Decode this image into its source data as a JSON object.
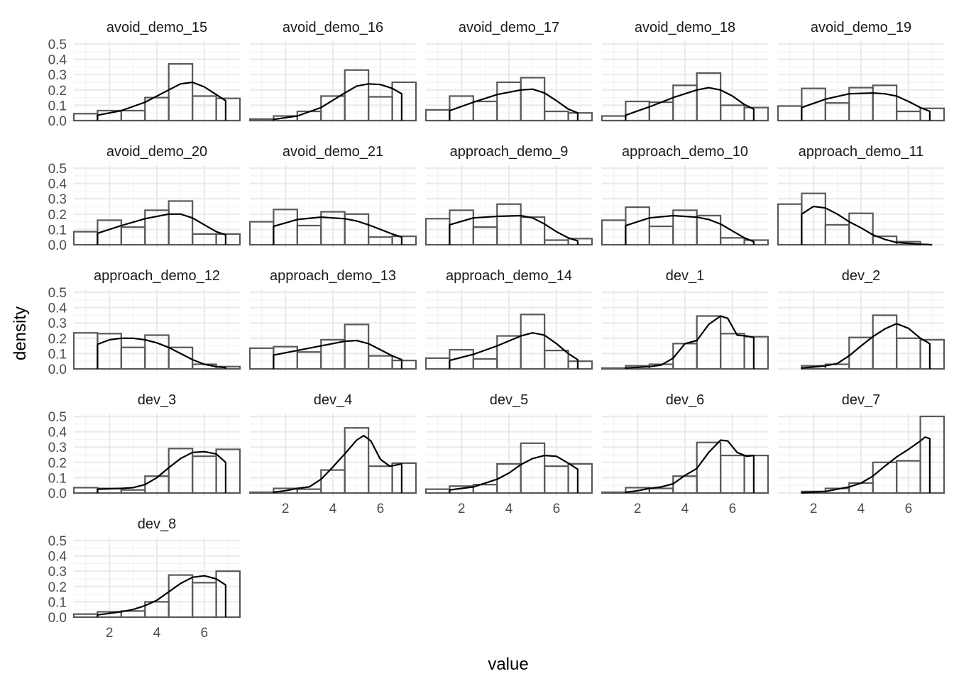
{
  "chart_data": {
    "type": "histogram-facet",
    "xlabel": "value",
    "ylabel": "density",
    "xlim": [
      0.5,
      7.5
    ],
    "ylim": [
      0,
      0.5
    ],
    "y_ticks": [
      0.0,
      0.1,
      0.2,
      0.3,
      0.4,
      0.5
    ],
    "y_tick_labels": [
      "0.0",
      "0.1",
      "0.2",
      "0.3",
      "0.4",
      "0.5"
    ],
    "x_ticks": [
      2,
      4,
      6
    ],
    "x_tick_labels": [
      "2",
      "4",
      "6"
    ],
    "bin_centers": [
      1,
      2,
      3,
      4,
      5,
      6,
      7
    ],
    "grid": true,
    "panels": [
      {
        "name": "avoid_demo_15",
        "hist": [
          0.045,
          0.065,
          0.065,
          0.15,
          0.37,
          0.16,
          0.145
        ],
        "density": [
          [
            1.5,
            0.035
          ],
          [
            2.5,
            0.065
          ],
          [
            3.5,
            0.12
          ],
          [
            4.5,
            0.2
          ],
          [
            5,
            0.24
          ],
          [
            5.5,
            0.25
          ],
          [
            6,
            0.22
          ],
          [
            6.5,
            0.17
          ],
          [
            6.9,
            0.13
          ]
        ]
      },
      {
        "name": "avoid_demo_16",
        "hist": [
          0.01,
          0.03,
          0.06,
          0.16,
          0.33,
          0.155,
          0.25
        ],
        "density": [
          [
            1.5,
            0.008
          ],
          [
            2.5,
            0.03
          ],
          [
            3.5,
            0.085
          ],
          [
            4.5,
            0.18
          ],
          [
            5,
            0.225
          ],
          [
            5.5,
            0.24
          ],
          [
            6,
            0.235
          ],
          [
            6.5,
            0.21
          ],
          [
            6.9,
            0.175
          ]
        ]
      },
      {
        "name": "avoid_demo_17",
        "hist": [
          0.07,
          0.16,
          0.125,
          0.25,
          0.28,
          0.06,
          0.05
        ],
        "density": [
          [
            1.5,
            0.065
          ],
          [
            2.5,
            0.12
          ],
          [
            3.5,
            0.17
          ],
          [
            4.5,
            0.2
          ],
          [
            5,
            0.205
          ],
          [
            5.5,
            0.18
          ],
          [
            6,
            0.13
          ],
          [
            6.5,
            0.075
          ],
          [
            6.9,
            0.05
          ]
        ]
      },
      {
        "name": "avoid_demo_18",
        "hist": [
          0.03,
          0.125,
          0.12,
          0.23,
          0.31,
          0.1,
          0.085
        ],
        "density": [
          [
            1.5,
            0.035
          ],
          [
            2.5,
            0.09
          ],
          [
            3.5,
            0.15
          ],
          [
            4.5,
            0.2
          ],
          [
            5,
            0.215
          ],
          [
            5.5,
            0.2
          ],
          [
            6,
            0.16
          ],
          [
            6.5,
            0.105
          ],
          [
            6.9,
            0.075
          ]
        ]
      },
      {
        "name": "avoid_demo_19",
        "hist": [
          0.095,
          0.21,
          0.115,
          0.215,
          0.23,
          0.06,
          0.08
        ],
        "density": [
          [
            1.5,
            0.085
          ],
          [
            2.5,
            0.14
          ],
          [
            3.5,
            0.175
          ],
          [
            4.5,
            0.18
          ],
          [
            5,
            0.175
          ],
          [
            5.5,
            0.16
          ],
          [
            6,
            0.125
          ],
          [
            6.5,
            0.085
          ],
          [
            6.9,
            0.06
          ]
        ]
      },
      {
        "name": "avoid_demo_20",
        "hist": [
          0.085,
          0.16,
          0.115,
          0.225,
          0.285,
          0.07,
          0.07
        ],
        "density": [
          [
            1.5,
            0.075
          ],
          [
            2.5,
            0.125
          ],
          [
            3.5,
            0.17
          ],
          [
            4.5,
            0.2
          ],
          [
            5,
            0.2
          ],
          [
            5.5,
            0.175
          ],
          [
            6,
            0.13
          ],
          [
            6.5,
            0.085
          ],
          [
            6.9,
            0.065
          ]
        ]
      },
      {
        "name": "avoid_demo_21",
        "hist": [
          0.15,
          0.23,
          0.125,
          0.215,
          0.2,
          0.05,
          0.055
        ],
        "density": [
          [
            1.5,
            0.12
          ],
          [
            2.5,
            0.165
          ],
          [
            3.5,
            0.18
          ],
          [
            4.5,
            0.17
          ],
          [
            5,
            0.155
          ],
          [
            5.5,
            0.13
          ],
          [
            6,
            0.1
          ],
          [
            6.5,
            0.07
          ],
          [
            6.9,
            0.05
          ]
        ]
      },
      {
        "name": "approach_demo_9",
        "hist": [
          0.17,
          0.225,
          0.115,
          0.265,
          0.18,
          0.03,
          0.04
        ],
        "density": [
          [
            1.5,
            0.13
          ],
          [
            2.5,
            0.175
          ],
          [
            3.5,
            0.185
          ],
          [
            4.5,
            0.19
          ],
          [
            5,
            0.175
          ],
          [
            5.5,
            0.135
          ],
          [
            6,
            0.085
          ],
          [
            6.5,
            0.045
          ],
          [
            6.9,
            0.025
          ]
        ]
      },
      {
        "name": "approach_demo_10",
        "hist": [
          0.16,
          0.245,
          0.12,
          0.225,
          0.19,
          0.045,
          0.03
        ],
        "density": [
          [
            1.5,
            0.125
          ],
          [
            2.5,
            0.175
          ],
          [
            3.5,
            0.19
          ],
          [
            4.5,
            0.18
          ],
          [
            5,
            0.165
          ],
          [
            5.5,
            0.135
          ],
          [
            6,
            0.09
          ],
          [
            6.5,
            0.045
          ],
          [
            6.9,
            0.02
          ]
        ]
      },
      {
        "name": "approach_demo_11",
        "hist": [
          0.265,
          0.335,
          0.13,
          0.205,
          0.055,
          0.02,
          0.0
        ],
        "density": [
          [
            1.5,
            0.2
          ],
          [
            2,
            0.25
          ],
          [
            2.5,
            0.24
          ],
          [
            3,
            0.2
          ],
          [
            3.5,
            0.15
          ],
          [
            4,
            0.11
          ],
          [
            4.5,
            0.065
          ],
          [
            5,
            0.035
          ],
          [
            5.5,
            0.015
          ],
          [
            6.5,
            0.003
          ],
          [
            7,
            0.0
          ]
        ]
      },
      {
        "name": "approach_demo_12",
        "hist": [
          0.235,
          0.23,
          0.14,
          0.22,
          0.14,
          0.03,
          0.015
        ],
        "density": [
          [
            1.5,
            0.16
          ],
          [
            2,
            0.19
          ],
          [
            2.5,
            0.2
          ],
          [
            3,
            0.2
          ],
          [
            3.5,
            0.19
          ],
          [
            4,
            0.17
          ],
          [
            4.5,
            0.14
          ],
          [
            5,
            0.1
          ],
          [
            5.5,
            0.06
          ],
          [
            6,
            0.03
          ],
          [
            6.5,
            0.015
          ],
          [
            6.9,
            0.008
          ]
        ]
      },
      {
        "name": "approach_demo_13",
        "hist": [
          0.135,
          0.145,
          0.11,
          0.19,
          0.29,
          0.085,
          0.055
        ],
        "density": [
          [
            1.5,
            0.09
          ],
          [
            2.5,
            0.12
          ],
          [
            3.5,
            0.15
          ],
          [
            4.5,
            0.18
          ],
          [
            5,
            0.185
          ],
          [
            5.5,
            0.165
          ],
          [
            6,
            0.125
          ],
          [
            6.5,
            0.085
          ],
          [
            6.9,
            0.06
          ]
        ]
      },
      {
        "name": "approach_demo_14",
        "hist": [
          0.07,
          0.125,
          0.065,
          0.215,
          0.355,
          0.12,
          0.05
        ],
        "density": [
          [
            1.5,
            0.055
          ],
          [
            2.5,
            0.095
          ],
          [
            3.5,
            0.15
          ],
          [
            4.5,
            0.215
          ],
          [
            5,
            0.235
          ],
          [
            5.5,
            0.22
          ],
          [
            6,
            0.165
          ],
          [
            6.5,
            0.1
          ],
          [
            6.9,
            0.06
          ]
        ]
      },
      {
        "name": "dev_1",
        "hist": [
          0.005,
          0.02,
          0.03,
          0.165,
          0.345,
          0.23,
          0.21
        ],
        "density": [
          [
            1.5,
            0.005
          ],
          [
            2.5,
            0.015
          ],
          [
            3,
            0.025
          ],
          [
            3.5,
            0.07
          ],
          [
            4,
            0.165
          ],
          [
            4.5,
            0.185
          ],
          [
            5,
            0.29
          ],
          [
            5.5,
            0.345
          ],
          [
            5.8,
            0.33
          ],
          [
            6.2,
            0.22
          ],
          [
            6.6,
            0.215
          ],
          [
            6.9,
            0.205
          ]
        ]
      },
      {
        "name": "dev_2",
        "hist": [
          0.0,
          0.02,
          0.03,
          0.205,
          0.35,
          0.2,
          0.19
        ],
        "density": [
          [
            1.5,
            0.005
          ],
          [
            2.5,
            0.02
          ],
          [
            3,
            0.035
          ],
          [
            3.5,
            0.085
          ],
          [
            4,
            0.15
          ],
          [
            4.5,
            0.21
          ],
          [
            5,
            0.26
          ],
          [
            5.5,
            0.295
          ],
          [
            6,
            0.265
          ],
          [
            6.5,
            0.2
          ],
          [
            6.9,
            0.165
          ]
        ]
      },
      {
        "name": "dev_3",
        "hist": [
          0.035,
          0.03,
          0.02,
          0.11,
          0.29,
          0.24,
          0.285
        ],
        "density": [
          [
            1.5,
            0.025
          ],
          [
            2.5,
            0.03
          ],
          [
            3,
            0.035
          ],
          [
            3.5,
            0.055
          ],
          [
            4,
            0.1
          ],
          [
            4.5,
            0.165
          ],
          [
            5,
            0.225
          ],
          [
            5.5,
            0.265
          ],
          [
            6,
            0.27
          ],
          [
            6.5,
            0.255
          ],
          [
            6.9,
            0.2
          ]
        ]
      },
      {
        "name": "dev_4",
        "hist": [
          0.005,
          0.03,
          0.025,
          0.15,
          0.425,
          0.175,
          0.195
        ],
        "density": [
          [
            1.5,
            0.005
          ],
          [
            2,
            0.015
          ],
          [
            2.5,
            0.03
          ],
          [
            3,
            0.04
          ],
          [
            3.5,
            0.09
          ],
          [
            4,
            0.17
          ],
          [
            4.5,
            0.255
          ],
          [
            5,
            0.345
          ],
          [
            5.3,
            0.375
          ],
          [
            5.6,
            0.34
          ],
          [
            6,
            0.22
          ],
          [
            6.4,
            0.175
          ],
          [
            6.9,
            0.19
          ]
        ]
      },
      {
        "name": "dev_5",
        "hist": [
          0.025,
          0.045,
          0.055,
          0.19,
          0.325,
          0.175,
          0.19
        ],
        "density": [
          [
            1.5,
            0.02
          ],
          [
            2.5,
            0.04
          ],
          [
            3.5,
            0.09
          ],
          [
            4,
            0.13
          ],
          [
            4.5,
            0.185
          ],
          [
            5,
            0.225
          ],
          [
            5.5,
            0.245
          ],
          [
            6,
            0.24
          ],
          [
            6.5,
            0.195
          ],
          [
            6.9,
            0.155
          ]
        ]
      },
      {
        "name": "dev_6",
        "hist": [
          0.005,
          0.035,
          0.03,
          0.11,
          0.33,
          0.245,
          0.245
        ],
        "density": [
          [
            1.5,
            0.005
          ],
          [
            2,
            0.015
          ],
          [
            2.5,
            0.03
          ],
          [
            3,
            0.04
          ],
          [
            3.5,
            0.06
          ],
          [
            4,
            0.115
          ],
          [
            4.5,
            0.16
          ],
          [
            5,
            0.265
          ],
          [
            5.5,
            0.345
          ],
          [
            5.8,
            0.34
          ],
          [
            6.2,
            0.265
          ],
          [
            6.6,
            0.24
          ],
          [
            6.9,
            0.245
          ]
        ]
      },
      {
        "name": "dev_7",
        "hist": [
          0.0,
          0.01,
          0.03,
          0.065,
          0.2,
          0.21,
          0.5
        ],
        "density": [
          [
            1.5,
            0.002
          ],
          [
            2.5,
            0.01
          ],
          [
            3,
            0.025
          ],
          [
            3.5,
            0.04
          ],
          [
            4,
            0.065
          ],
          [
            4.5,
            0.11
          ],
          [
            5,
            0.175
          ],
          [
            5.5,
            0.235
          ],
          [
            6,
            0.285
          ],
          [
            6.5,
            0.34
          ],
          [
            6.7,
            0.365
          ],
          [
            6.9,
            0.355
          ]
        ]
      },
      {
        "name": "dev_8",
        "hist": [
          0.02,
          0.035,
          0.04,
          0.1,
          0.275,
          0.225,
          0.3
        ],
        "density": [
          [
            1.5,
            0.015
          ],
          [
            2.5,
            0.035
          ],
          [
            3,
            0.05
          ],
          [
            3.5,
            0.075
          ],
          [
            4,
            0.11
          ],
          [
            4.5,
            0.165
          ],
          [
            5,
            0.22
          ],
          [
            5.5,
            0.26
          ],
          [
            6,
            0.27
          ],
          [
            6.5,
            0.25
          ],
          [
            6.9,
            0.21
          ]
        ]
      }
    ]
  }
}
